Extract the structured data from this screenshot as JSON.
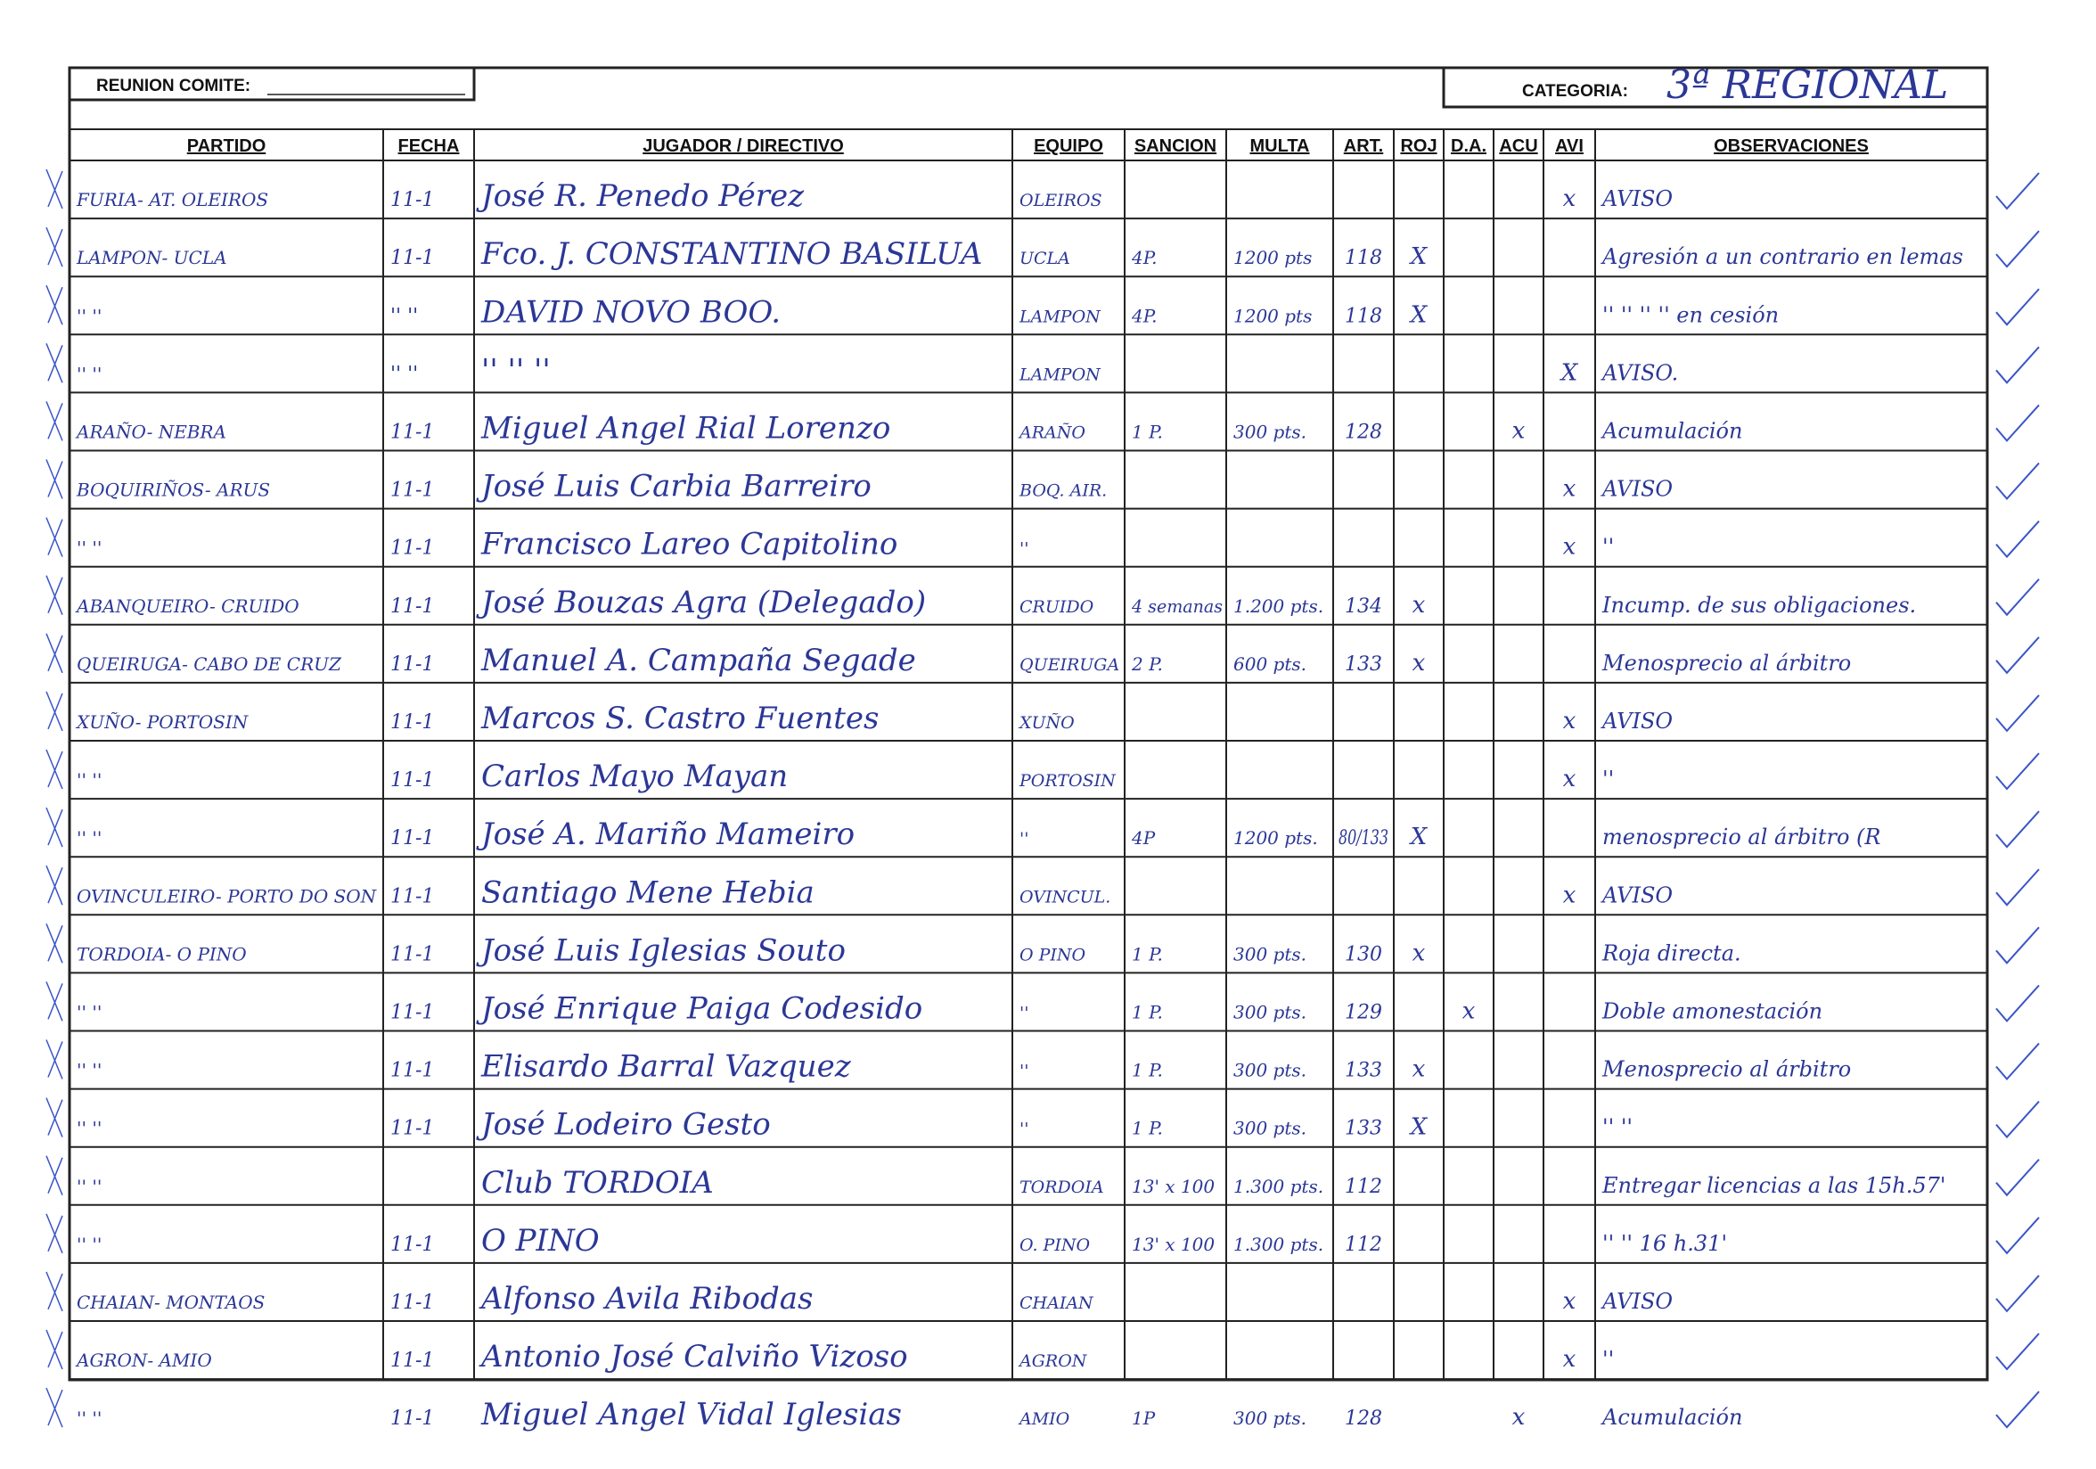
{
  "header": {
    "reunion_label": "REUNION COMITE:",
    "categoria_label": "CATEGORIA:",
    "categoria": "3ª REGIONAL"
  },
  "table": {
    "columns": [
      "PARTIDO",
      "FECHA",
      "JUGADOR / DIRECTIVO",
      "EQUIPO",
      "SANCION",
      "MULTA",
      "ART.",
      "ROJ",
      "D.A.",
      "ACU",
      "AVI",
      "OBSERVACIONES"
    ],
    "rows": [
      [
        "FURIA- AT. OLEIROS",
        "11-1",
        "José R. Penedo Pérez",
        "OLEIROS",
        null,
        null,
        null,
        null,
        null,
        null,
        "x",
        "AVISO"
      ],
      [
        "LAMPON- UCLA",
        "11-1",
        "Fco. J. CONSTANTINO BASILUA",
        "UCLA",
        "4P.",
        "1200 pts",
        "118",
        "X",
        null,
        null,
        null,
        "Agresión a un contrario en lemas"
      ],
      [
        "''   ''",
        "'' ''",
        "DAVID NOVO BOO.",
        "LAMPON",
        "4P.",
        "1200 pts",
        "118",
        "X",
        null,
        null,
        null,
        "''  ''  ''  '' en cesión"
      ],
      [
        "''   ''",
        "'' ''",
        "''   ''   ''",
        "LAMPON",
        null,
        null,
        null,
        null,
        null,
        null,
        "X",
        "AVISO."
      ],
      [
        "ARAÑO- NEBRA",
        "11-1",
        "Miguel Angel Rial Lorenzo",
        "ARAÑO",
        "1 P.",
        "300 pts.",
        "128",
        null,
        null,
        "x",
        null,
        "Acumulación"
      ],
      [
        "BOQUIRIÑOS- ARUS",
        "11-1",
        "José Luis Carbia Barreiro",
        "BOQ. AIR.",
        null,
        null,
        null,
        null,
        null,
        null,
        "x",
        "AVISO"
      ],
      [
        "''   ''",
        "11-1",
        "Francisco Lareo Capitolino",
        "''",
        null,
        null,
        null,
        null,
        null,
        null,
        "x",
        "''"
      ],
      [
        "ABANQUEIRO- CRUIDO",
        "11-1",
        "José Bouzas Agra (Delegado)",
        "CRUIDO",
        "4 semanas",
        "1.200 pts.",
        "134",
        "x",
        null,
        null,
        null,
        "Incump. de sus obligaciones."
      ],
      [
        "QUEIRUGA- CABO DE CRUZ",
        "11-1",
        "Manuel A. Campaña Segade",
        "QUEIRUGA",
        "2 P.",
        "600 pts.",
        "133",
        "x",
        null,
        null,
        null,
        "Menosprecio al árbitro"
      ],
      [
        "XUÑO- PORTOSIN",
        "11-1",
        "Marcos S. Castro Fuentes",
        "XUÑO",
        null,
        null,
        null,
        null,
        null,
        null,
        "x",
        "AVISO"
      ],
      [
        "''   ''",
        "11-1",
        "Carlos Mayo Mayan",
        "PORTOSIN",
        null,
        null,
        null,
        null,
        null,
        null,
        "x",
        "''"
      ],
      [
        "''   ''",
        "11-1",
        "José A. Mariño Mameiro",
        "''",
        "4P",
        "1200 pts.",
        "80/133",
        "X",
        null,
        null,
        null,
        "menosprecio al árbitro (R"
      ],
      [
        "OVINCULEIRO- PORTO DO SON",
        "11-1",
        "Santiago Mene Hebia",
        "OVINCUL.",
        null,
        null,
        null,
        null,
        null,
        null,
        "x",
        "AVISO"
      ],
      [
        "TORDOIA- O PINO",
        "11-1",
        "José Luis Iglesias Souto",
        "O PINO",
        "1 P.",
        "300 pts.",
        "130",
        "x",
        null,
        null,
        null,
        "Roja directa."
      ],
      [
        "''   ''",
        "11-1",
        "José Enrique Paiga Codesido",
        "''",
        "1 P.",
        "300 pts.",
        "129",
        null,
        "x",
        null,
        null,
        "Doble amonestación"
      ],
      [
        "''   ''",
        "11-1",
        "Elisardo Barral Vazquez",
        "''",
        "1 P.",
        "300 pts.",
        "133",
        "x",
        null,
        null,
        null,
        "Menosprecio al árbitro"
      ],
      [
        "''   ''",
        "11-1",
        "José Lodeiro Gesto",
        "''",
        "1 P.",
        "300 pts.",
        "133",
        "X",
        null,
        null,
        null,
        "''     ''"
      ],
      [
        "''   ''",
        null,
        "Club TORDOIA",
        "TORDOIA",
        "13' x 100",
        "1.300 pts.",
        "112",
        null,
        null,
        null,
        null,
        "Entregar licencias a las 15h.57'"
      ],
      [
        "''   ''",
        "11-1",
        "O PINO",
        "O. PINO",
        "13' x 100",
        "1.300 pts.",
        "112",
        null,
        null,
        null,
        null,
        "''   ''   16 h.31'"
      ],
      [
        "CHAIAN- MONTAOS",
        "11-1",
        "Alfonso Avila Ribodas",
        "CHAIAN",
        null,
        null,
        null,
        null,
        null,
        null,
        "x",
        "AVISO"
      ],
      [
        "AGRON- AMIO",
        "11-1",
        "Antonio José Calviño Vizoso",
        "AGRON",
        null,
        null,
        null,
        null,
        null,
        null,
        "x",
        "''"
      ],
      [
        "''   ''",
        "11-1",
        "Miguel Angel Vidal Iglesias",
        "AMIO",
        "1P",
        "300 pts.",
        "128",
        null,
        null,
        "x",
        null,
        "Acumulación"
      ]
    ]
  }
}
